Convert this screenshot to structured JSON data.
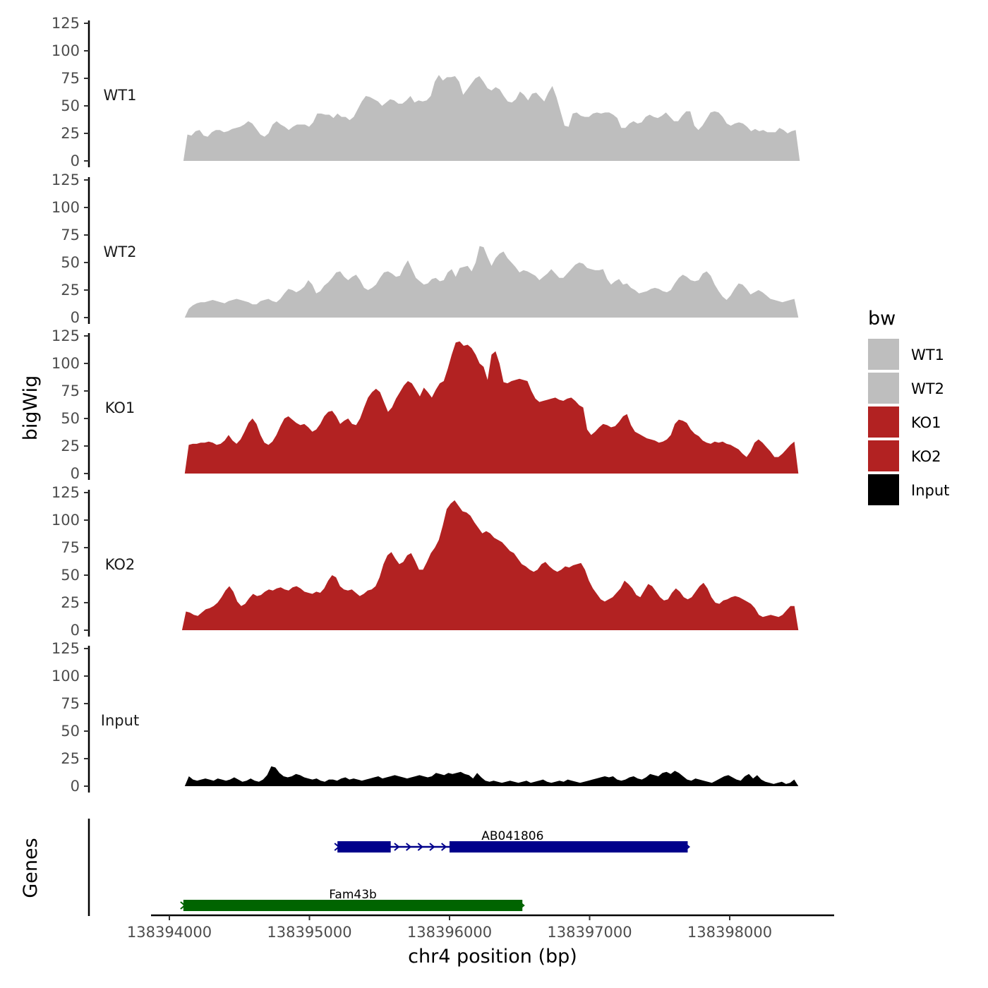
{
  "chart_data": {
    "type": "area",
    "ylabel": "bigWig",
    "xlabel": "chr4 position (bp)",
    "xlim": [
      138393800,
      138398700
    ],
    "x_ticks": [
      138394000,
      138395000,
      138396000,
      138397000,
      138398000
    ],
    "x_tick_labels": [
      "138394000",
      "138395000",
      "138396000",
      "138397000",
      "138398000"
    ],
    "ylim": [
      0,
      125
    ],
    "y_ticks": [
      0,
      25,
      50,
      75,
      100,
      125
    ],
    "y_tick_labels": [
      "0",
      "25",
      "50",
      "75",
      "100",
      "125"
    ],
    "legend": {
      "title": "bw",
      "placement": "right",
      "entries": [
        {
          "label": "WT1",
          "color": "#bebebe"
        },
        {
          "label": "WT2",
          "color": "#bebebe"
        },
        {
          "label": "KO1",
          "color": "#b22222"
        },
        {
          "label": "KO2",
          "color": "#b22222"
        },
        {
          "label": "Input",
          "color": "#000000"
        }
      ]
    },
    "series": [
      {
        "name": "WT1",
        "color": "#bebebe",
        "x_start": 138394100,
        "x_end": 138398500,
        "values": [
          0,
          24,
          23,
          27,
          28,
          23,
          22,
          26,
          28,
          28,
          26,
          27,
          29,
          30,
          31,
          33,
          36,
          34,
          29,
          24,
          22,
          25,
          33,
          36,
          33,
          31,
          28,
          31,
          33,
          33,
          33,
          31,
          35,
          43,
          43,
          42,
          42,
          39,
          43,
          40,
          40,
          37,
          40,
          47,
          54,
          59,
          58,
          56,
          54,
          50,
          53,
          56,
          55,
          52,
          52,
          55,
          59,
          53,
          55,
          54,
          55,
          59,
          72,
          78,
          73,
          76,
          76,
          77,
          72,
          60,
          65,
          70,
          75,
          77,
          72,
          66,
          64,
          67,
          65,
          59,
          54,
          53,
          56,
          63,
          60,
          55,
          61,
          62,
          58,
          54,
          62,
          68,
          58,
          45,
          32,
          31,
          43,
          44,
          41,
          40,
          40,
          43,
          44,
          43,
          44,
          44,
          42,
          39,
          30,
          30,
          34,
          36,
          34,
          35,
          40,
          42,
          40,
          39,
          41,
          44,
          40,
          36,
          36,
          41,
          45,
          45,
          32,
          28,
          32,
          38,
          44,
          45,
          44,
          40,
          34,
          32,
          34,
          35,
          34,
          31,
          27,
          29,
          27,
          28,
          26,
          26,
          26,
          30,
          28,
          25,
          27,
          28,
          0
        ]
      },
      {
        "name": "WT2",
        "color": "#bebebe",
        "x_start": 138394110,
        "x_end": 138398490,
        "values": [
          0,
          8,
          11,
          13,
          14,
          14,
          15,
          16,
          15,
          14,
          13,
          15,
          16,
          17,
          16,
          15,
          14,
          12,
          12,
          15,
          16,
          17,
          15,
          14,
          17,
          22,
          26,
          25,
          23,
          25,
          28,
          34,
          30,
          22,
          24,
          29,
          32,
          36,
          41,
          42,
          37,
          34,
          37,
          39,
          34,
          27,
          25,
          27,
          30,
          36,
          41,
          42,
          40,
          37,
          38,
          46,
          52,
          44,
          36,
          33,
          30,
          31,
          35,
          36,
          33,
          34,
          41,
          44,
          37,
          45,
          46,
          47,
          42,
          50,
          65,
          64,
          55,
          47,
          54,
          58,
          60,
          54,
          50,
          46,
          41,
          43,
          42,
          40,
          38,
          34,
          37,
          40,
          44,
          40,
          36,
          36,
          40,
          44,
          48,
          50,
          49,
          45,
          44,
          43,
          43,
          44,
          35,
          30,
          33,
          35,
          30,
          31,
          27,
          25,
          22,
          23,
          24,
          26,
          27,
          26,
          24,
          23,
          25,
          31,
          36,
          39,
          37,
          34,
          33,
          34,
          40,
          42,
          38,
          30,
          24,
          19,
          16,
          20,
          26,
          31,
          30,
          26,
          21,
          23,
          25,
          23,
          20,
          17,
          16,
          15,
          14,
          15,
          16,
          17,
          0
        ]
      },
      {
        "name": "KO1",
        "color": "#b22222",
        "x_start": 138394110,
        "x_end": 138398490,
        "values": [
          0,
          26,
          27,
          27,
          28,
          28,
          29,
          28,
          26,
          27,
          30,
          35,
          30,
          27,
          31,
          38,
          46,
          50,
          45,
          35,
          28,
          26,
          29,
          35,
          43,
          50,
          52,
          49,
          46,
          44,
          45,
          42,
          38,
          40,
          45,
          52,
          56,
          57,
          52,
          45,
          48,
          50,
          45,
          44,
          50,
          60,
          69,
          74,
          77,
          74,
          65,
          56,
          60,
          68,
          74,
          80,
          84,
          82,
          76,
          70,
          78,
          74,
          69,
          76,
          82,
          84,
          95,
          108,
          119,
          120,
          116,
          117,
          114,
          108,
          100,
          97,
          85,
          108,
          111,
          100,
          83,
          82,
          84,
          85,
          86,
          85,
          84,
          75,
          68,
          65,
          66,
          67,
          68,
          69,
          67,
          66,
          68,
          69,
          66,
          62,
          60,
          40,
          35,
          38,
          42,
          45,
          44,
          42,
          43,
          47,
          52,
          54,
          44,
          38,
          36,
          34,
          32,
          31,
          30,
          28,
          29,
          31,
          35,
          45,
          49,
          48,
          46,
          40,
          36,
          34,
          30,
          28,
          27,
          29,
          28,
          29,
          27,
          26,
          24,
          22,
          18,
          15,
          20,
          28,
          31,
          28,
          24,
          20,
          15,
          15,
          18,
          22,
          26,
          29,
          0
        ]
      },
      {
        "name": "KO2",
        "color": "#b22222",
        "x_start": 138394090,
        "x_end": 138398490,
        "values": [
          0,
          17,
          16,
          14,
          13,
          16,
          19,
          20,
          22,
          25,
          30,
          36,
          40,
          35,
          26,
          22,
          24,
          29,
          33,
          31,
          32,
          35,
          37,
          36,
          38,
          39,
          37,
          36,
          39,
          40,
          38,
          35,
          34,
          33,
          35,
          34,
          38,
          45,
          50,
          48,
          40,
          37,
          36,
          37,
          34,
          31,
          33,
          36,
          37,
          40,
          48,
          60,
          68,
          71,
          65,
          60,
          62,
          68,
          70,
          63,
          55,
          55,
          62,
          70,
          75,
          82,
          95,
          110,
          115,
          118,
          113,
          108,
          107,
          104,
          98,
          93,
          88,
          90,
          88,
          84,
          82,
          80,
          76,
          72,
          70,
          65,
          60,
          58,
          55,
          53,
          55,
          60,
          62,
          58,
          55,
          53,
          55,
          58,
          57,
          59,
          60,
          61,
          55,
          45,
          38,
          33,
          28,
          26,
          28,
          30,
          34,
          38,
          45,
          42,
          38,
          32,
          30,
          36,
          42,
          40,
          35,
          30,
          27,
          28,
          34,
          38,
          35,
          30,
          28,
          30,
          35,
          40,
          43,
          38,
          30,
          25,
          24,
          27,
          28,
          30,
          31,
          30,
          28,
          26,
          24,
          20,
          14,
          12,
          13,
          14,
          13,
          12,
          14,
          18,
          22,
          22,
          0
        ]
      },
      {
        "name": "Input",
        "color": "#000000",
        "x_start": 138394110,
        "x_end": 138398490,
        "values": [
          0,
          9,
          6,
          5,
          6,
          7,
          6,
          5,
          7,
          6,
          5,
          6,
          8,
          6,
          4,
          5,
          7,
          5,
          4,
          6,
          10,
          18,
          17,
          12,
          9,
          8,
          9,
          11,
          10,
          8,
          7,
          6,
          7,
          5,
          4,
          6,
          6,
          5,
          7,
          8,
          6,
          7,
          6,
          5,
          6,
          7,
          8,
          9,
          7,
          8,
          9,
          10,
          9,
          8,
          7,
          8,
          9,
          10,
          9,
          8,
          9,
          12,
          11,
          10,
          12,
          11,
          12,
          13,
          11,
          10,
          7,
          12,
          8,
          5,
          4,
          5,
          4,
          3,
          4,
          5,
          4,
          3,
          4,
          5,
          3,
          4,
          5,
          6,
          4,
          3,
          4,
          5,
          4,
          6,
          5,
          4,
          3,
          4,
          5,
          6,
          7,
          8,
          9,
          8,
          9,
          6,
          5,
          6,
          8,
          9,
          7,
          6,
          8,
          11,
          10,
          9,
          12,
          13,
          11,
          14,
          12,
          9,
          6,
          5,
          7,
          6,
          5,
          4,
          3,
          5,
          7,
          9,
          10,
          8,
          6,
          5,
          9,
          11,
          7,
          10,
          6,
          4,
          3,
          2,
          3,
          4,
          2,
          3,
          6,
          0
        ]
      }
    ],
    "genes_track": {
      "ylabel": "Genes",
      "genes": [
        {
          "name": "AB041806",
          "start": 138395200,
          "end": 138397700,
          "strand": "+",
          "color": "#00008b",
          "exons": [
            [
              138395200,
              138395580
            ],
            [
              138396000,
              138397700
            ]
          ]
        },
        {
          "name": "Fam43b",
          "start": 138394100,
          "end": 138396520,
          "strand": "+",
          "color": "#006400",
          "exons": [
            [
              138394100,
              138396520
            ]
          ]
        }
      ]
    }
  }
}
